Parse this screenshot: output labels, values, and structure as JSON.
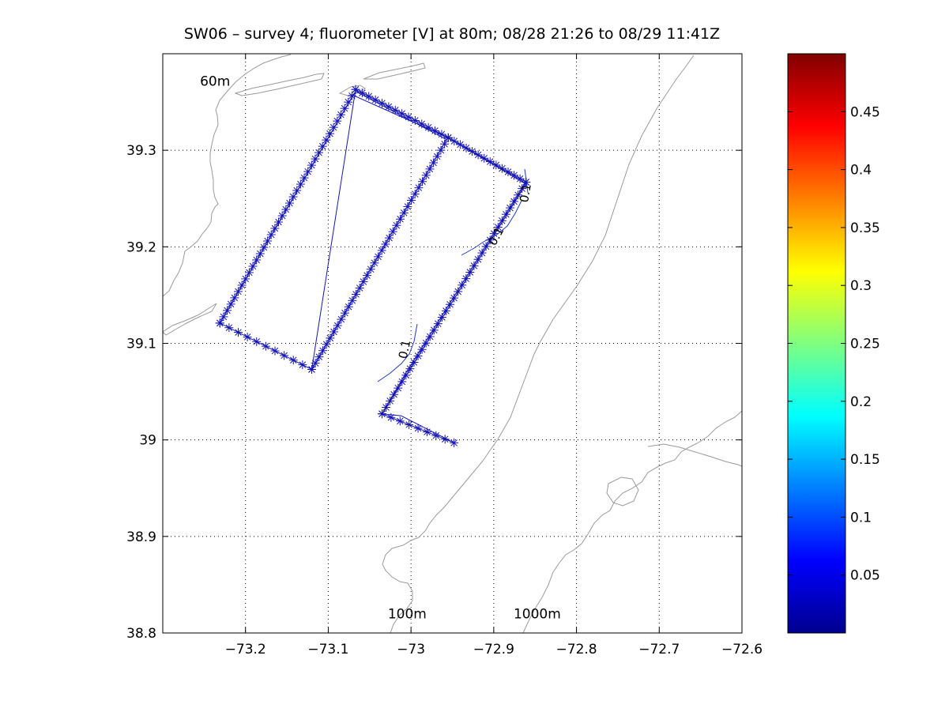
{
  "chart_data": {
    "type": "scatter",
    "title": "SW06 – survey 4; fluorometer [V] at 80m; 08/28 21:26 to 08/29 11:41Z",
    "xlim": [
      -73.3,
      -72.6
    ],
    "ylim": [
      38.8,
      39.4
    ],
    "x_ticks": [
      -73.2,
      -73.1,
      -73.0,
      -72.9,
      -72.8,
      -72.7,
      -72.6
    ],
    "x_tick_labels": [
      "−73.2",
      "−73.1",
      "−73",
      "−72.9",
      "−72.8",
      "−72.7",
      "−72.6"
    ],
    "y_ticks": [
      38.8,
      38.9,
      39.0,
      39.1,
      39.2,
      39.3
    ],
    "y_tick_labels": [
      "38.8",
      "38.9",
      "39",
      "39.1",
      "39.2",
      "39.3"
    ],
    "grid": true,
    "marker_color": "#1414b4",
    "isobath_color": "#9a9a9a",
    "contour_color": "#1e3cc8",
    "isobath_labels": [
      {
        "text": "60m",
        "x": -73.255,
        "y": 39.367
      },
      {
        "text": "100m",
        "x": -73.028,
        "y": 38.815
      },
      {
        "text": "1000m",
        "x": -72.876,
        "y": 38.815
      }
    ],
    "contour_labels": [
      {
        "text": "0.1",
        "x": -72.857,
        "y": 39.255,
        "angle": -80
      },
      {
        "text": "0.1",
        "x": -72.893,
        "y": 39.209,
        "angle": -62
      },
      {
        "text": "0.1",
        "x": -73.003,
        "y": 39.093,
        "angle": -78
      }
    ],
    "track_waypoints": [
      [
        -72.948,
        38.997
      ],
      [
        -73.012,
        39.025
      ],
      [
        -73.035,
        39.027
      ],
      [
        -73.005,
        39.071
      ],
      [
        -72.861,
        39.267
      ],
      [
        -72.957,
        39.314
      ],
      [
        -73.067,
        39.363
      ],
      [
        -73.12,
        39.073
      ],
      [
        -73.231,
        39.121
      ],
      [
        -73.067,
        39.361
      ],
      [
        -72.957,
        39.311
      ],
      [
        -73.12,
        39.073
      ],
      [
        -73.231,
        39.121
      ],
      [
        -73.07,
        39.357
      ],
      [
        -72.955,
        39.313
      ],
      [
        -72.861,
        39.265
      ],
      [
        -73.035,
        39.027
      ],
      [
        -72.948,
        38.997
      ]
    ],
    "track_segments": [
      {
        "from": [
          -73.067,
          39.363
        ],
        "to": [
          -72.955,
          39.313
        ],
        "n": 14
      },
      {
        "from": [
          -72.955,
          39.313
        ],
        "to": [
          -72.861,
          39.267
        ],
        "n": 13
      },
      {
        "from": [
          -72.861,
          39.267
        ],
        "to": [
          -73.035,
          39.027
        ],
        "n": 36
      },
      {
        "from": [
          -73.035,
          39.027
        ],
        "to": [
          -72.948,
          38.997
        ],
        "n": 8
      },
      {
        "from": [
          -72.955,
          39.313
        ],
        "to": [
          -73.12,
          39.073
        ],
        "n": 37
      },
      {
        "from": [
          -73.12,
          39.073
        ],
        "to": [
          -73.231,
          39.121
        ],
        "n": 10
      },
      {
        "from": [
          -73.231,
          39.121
        ],
        "to": [
          -73.067,
          39.363
        ],
        "n": 37
      }
    ],
    "colorbar": {
      "min": 0.0,
      "max": 0.5,
      "tick_values": [
        0.05,
        0.1,
        0.15,
        0.2,
        0.25,
        0.3,
        0.35,
        0.4,
        0.45
      ],
      "tick_labels": [
        "0.05",
        "0.1",
        "0.15",
        "0.2",
        "0.25",
        "0.3",
        "0.35",
        "0.4",
        "0.45"
      ],
      "colormap": "jet"
    }
  }
}
